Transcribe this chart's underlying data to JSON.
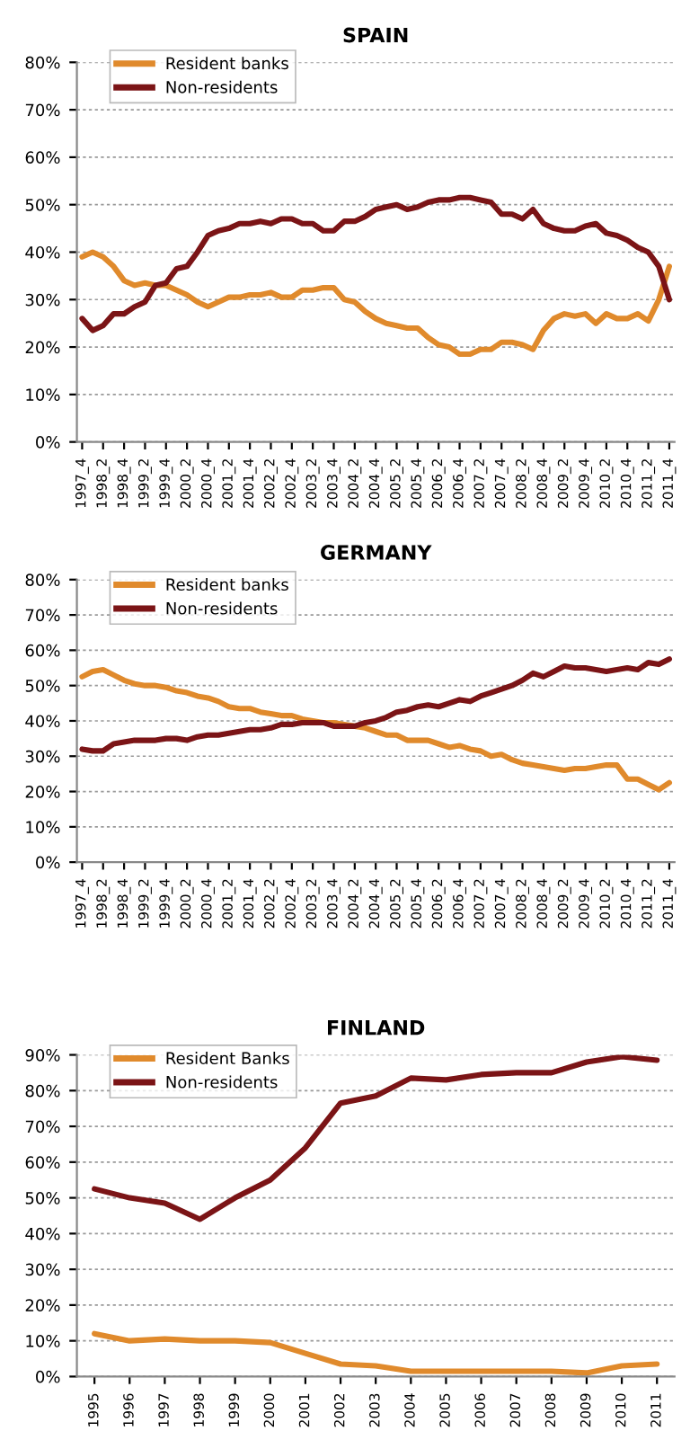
{
  "chart_data": [
    {
      "type": "line",
      "title": "SPAIN",
      "categories": [
        "1997_4",
        null,
        "1998_2",
        null,
        "1998_4",
        null,
        "1999_2",
        null,
        "1999_4",
        null,
        "2000_2",
        null,
        "2000_4",
        null,
        "2001_2",
        null,
        "2001_4",
        null,
        "2002_2",
        null,
        "2002_4",
        null,
        "2003_2",
        null,
        "2003_4",
        null,
        "2004_2",
        null,
        "2004_4",
        null,
        "2005_2",
        null,
        "2005_4",
        null,
        "2006_2",
        null,
        "2006_4",
        null,
        "2007_2",
        null,
        "2007_4",
        null,
        "2008_2",
        null,
        "2008_4",
        null,
        "2009_2",
        null,
        "2009_4",
        null,
        "2010_2",
        null,
        "2010_4",
        null,
        "2011_2",
        null,
        "2011_4"
      ],
      "series": [
        {
          "name": "Resident banks",
          "color": "#e08a2c",
          "values": [
            39,
            40,
            39,
            37,
            34,
            33,
            33.5,
            33,
            33,
            32,
            31,
            29.5,
            28.5,
            29.5,
            30.5,
            30.5,
            31,
            31,
            31.5,
            30.5,
            30.5,
            32,
            32,
            32.5,
            32.5,
            30,
            29.5,
            27.5,
            26,
            25,
            24.5,
            24,
            24,
            22,
            20.5,
            20,
            18.5,
            18.5,
            19.5,
            19.5,
            21,
            21,
            20.5,
            19.5,
            23.5,
            26,
            27,
            26.5,
            27,
            25,
            27,
            26,
            26,
            27,
            25.5,
            30,
            37
          ]
        },
        {
          "name": "Non-residents",
          "color": "#7b1416",
          "values": [
            26,
            23.5,
            24.5,
            27,
            27,
            28.5,
            29.5,
            33,
            33.5,
            36.5,
            37,
            40,
            43.5,
            44.5,
            45,
            46,
            46,
            46.5,
            46,
            47,
            47,
            46,
            46,
            44.5,
            44.5,
            46.5,
            46.5,
            47.5,
            49,
            49.5,
            50,
            49,
            49.5,
            50.5,
            51,
            51,
            51.5,
            51.5,
            51,
            50.5,
            48,
            48,
            47,
            49,
            46,
            45,
            44.5,
            44.5,
            45.5,
            46,
            44,
            43.5,
            42.5,
            41,
            40,
            37,
            30
          ]
        }
      ],
      "ylim": [
        0,
        80
      ],
      "yticks": [
        {
          "value": 0,
          "label": "0%"
        },
        {
          "value": 10,
          "label": "10%"
        },
        {
          "value": 20,
          "label": "20%"
        },
        {
          "value": 30,
          "label": "30%"
        },
        {
          "value": 40,
          "label": "40%"
        },
        {
          "value": 50,
          "label": "50%"
        },
        {
          "value": 60,
          "label": "60%"
        },
        {
          "value": 70,
          "label": "70%"
        },
        {
          "value": 80,
          "label": "80%"
        }
      ],
      "grid": "y",
      "legend": "top left"
    },
    {
      "type": "line",
      "title": "GERMANY",
      "categories": [
        "1997_4",
        null,
        "1998_2",
        null,
        "1998_4",
        null,
        "1999_2",
        null,
        "1999_4",
        null,
        "2000_2",
        null,
        "2000_4",
        null,
        "2001_2",
        null,
        "2001_4",
        null,
        "2002_2",
        null,
        "2002_4",
        null,
        "2003_2",
        null,
        "2003_4",
        null,
        "2004_2",
        null,
        "2004_4",
        null,
        "2005_2",
        null,
        "2005_4",
        null,
        "2006_2",
        null,
        "2006_4",
        null,
        "2007_2",
        null,
        "2007_4",
        null,
        "2008_2",
        null,
        "2008_4",
        null,
        "2009_2",
        null,
        "2009_4",
        null,
        "2010_2",
        null,
        "2010_4",
        null,
        "2011_2",
        null,
        "2011_4"
      ],
      "series": [
        {
          "name": "Resident banks",
          "color": "#e08a2c",
          "values": [
            52.5,
            54,
            54.5,
            53,
            51.5,
            50.5,
            50,
            50,
            49.5,
            48.5,
            48,
            47,
            46.5,
            45.5,
            44,
            43.5,
            43.5,
            42.5,
            42,
            41.5,
            41.5,
            40.5,
            40,
            39.5,
            39.5,
            39,
            38.5,
            38,
            37,
            36,
            36,
            34.5,
            34.5,
            34.5,
            33.5,
            32.5,
            33,
            32,
            31.5,
            30,
            30.5,
            29,
            28,
            27.5,
            27,
            26.5,
            26,
            26.5,
            26.5,
            27,
            27.5,
            27.5,
            23.5,
            23.5,
            22,
            20.5,
            22.5
          ]
        },
        {
          "name": "Non-residents",
          "color": "#7b1416",
          "values": [
            32,
            31.5,
            31.5,
            33.5,
            34,
            34.5,
            34.5,
            34.5,
            35,
            35,
            34.5,
            35.5,
            36,
            36,
            36.5,
            37,
            37.5,
            37.5,
            38,
            39,
            39,
            39.5,
            39.5,
            39.5,
            38.5,
            38.5,
            38.5,
            39.5,
            40,
            41,
            42.5,
            43,
            44,
            44.5,
            44,
            45,
            46,
            45.5,
            47,
            48,
            49,
            50,
            51.5,
            53.5,
            52.5,
            54,
            55.5,
            55,
            55,
            54.5,
            54,
            54.5,
            55,
            54.5,
            56.5,
            56,
            57.5
          ]
        }
      ],
      "ylim": [
        0,
        80
      ],
      "yticks": [
        {
          "value": 0,
          "label": "0%"
        },
        {
          "value": 10,
          "label": "10%"
        },
        {
          "value": 20,
          "label": "20%"
        },
        {
          "value": 30,
          "label": "30%"
        },
        {
          "value": 40,
          "label": "40%"
        },
        {
          "value": 50,
          "label": "50%"
        },
        {
          "value": 60,
          "label": "60%"
        },
        {
          "value": 70,
          "label": "70%"
        },
        {
          "value": 80,
          "label": "80%"
        }
      ],
      "grid": "y",
      "legend": "top left"
    },
    {
      "type": "line",
      "title": "FINLAND",
      "categories": [
        "1995",
        "1996",
        "1997",
        "1998",
        "1999",
        "2000",
        "2001",
        "2002",
        "2003",
        "2004",
        "2005",
        "2006",
        "2007",
        "2008",
        "2009",
        "2010",
        "2011"
      ],
      "series": [
        {
          "name": "Resident Banks",
          "color": "#e08a2c",
          "values": [
            12,
            10,
            10.5,
            10,
            10,
            9.5,
            6.5,
            3.5,
            3,
            1.5,
            1.5,
            1.5,
            1.5,
            1.5,
            1,
            3,
            3.5
          ]
        },
        {
          "name": "Non-residents",
          "color": "#7b1416",
          "values": [
            52.5,
            50,
            48.5,
            44,
            50,
            55,
            64,
            76.5,
            78.5,
            83.5,
            83,
            84.5,
            85,
            85,
            88,
            89.5,
            88.5
          ]
        }
      ],
      "ylim": [
        0,
        90
      ],
      "yticks": [
        {
          "value": 0,
          "label": "0%"
        },
        {
          "value": 10,
          "label": "10%"
        },
        {
          "value": 20,
          "label": "20%"
        },
        {
          "value": 30,
          "label": "30%"
        },
        {
          "value": 40,
          "label": "40%"
        },
        {
          "value": 50,
          "label": "50%"
        },
        {
          "value": 60,
          "label": "60%"
        },
        {
          "value": 70,
          "label": "70%"
        },
        {
          "value": 80,
          "label": "80%"
        },
        {
          "value": 90,
          "label": "90%"
        }
      ],
      "grid": "y",
      "legend": "top left"
    }
  ]
}
